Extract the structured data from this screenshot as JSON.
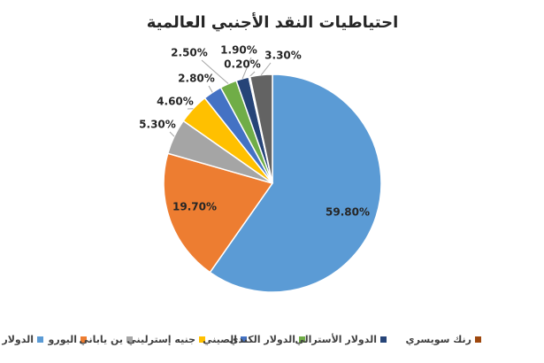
{
  "chart_data": {
    "type": "pie",
    "title": "احتياطيات النقد الأجنبي العالمية",
    "categories": [
      "الدولار ا",
      "اليورو",
      "ين ياباني",
      "جنيه إسترليني",
      "الصيني",
      "الدولار الكندي",
      "الدولار الأسترالي",
      "رنك سويسري",
      null
    ],
    "values": [
      59.8,
      19.7,
      5.3,
      4.6,
      2.8,
      2.5,
      1.9,
      0.2,
      3.3
    ],
    "value_labels": [
      "59.80%",
      "19.70%",
      "5.30%",
      "4.60%",
      "2.80%",
      "2.50%",
      "1.90%",
      "0.20%",
      "3.30%"
    ],
    "colors": [
      "#5b9bd5",
      "#ed7d31",
      "#a5a5a5",
      "#ffc000",
      "#4472c4",
      "#70ad47",
      "#264478",
      "#9e480e",
      "#636363"
    ]
  }
}
